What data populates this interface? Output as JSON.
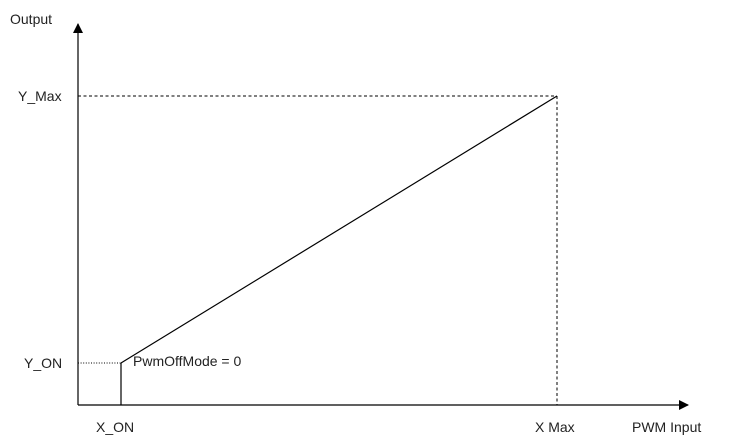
{
  "y_axis_label": "Output",
  "x_axis_label": "PWM Input",
  "y_max_label": "Y_Max",
  "y_on_label": "Y_ON",
  "x_on_label": "X_ON",
  "x_max_label": "X Max",
  "annotation": "PwmOffMode = 0"
}
